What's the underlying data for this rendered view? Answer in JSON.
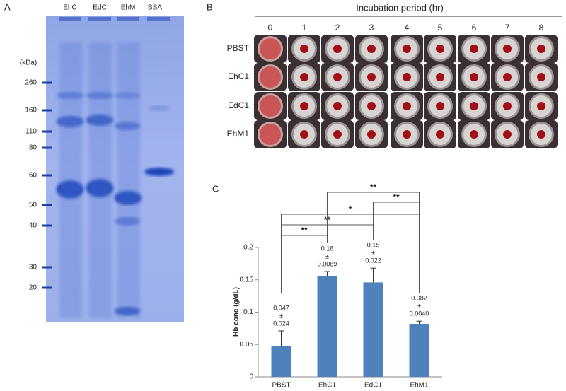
{
  "gel": {
    "panel_label": "A",
    "lanes": [
      "EhC",
      "EdC",
      "EhM",
      "BSA"
    ],
    "unit": "(kDa)",
    "markers": [
      260,
      160,
      110,
      80,
      60,
      50,
      40,
      30,
      20
    ]
  },
  "plate": {
    "panel_label": "B",
    "title": "Incubation period (hr)",
    "columns": [
      0,
      1,
      2,
      3,
      4,
      5,
      6,
      7,
      8
    ],
    "rows": [
      "PBST",
      "EhC1",
      "EdC1",
      "EhM1"
    ]
  },
  "chart_data": {
    "type": "bar",
    "panel_label": "C",
    "ylabel": "Hb conc (g/dL)",
    "categories": [
      "PBST",
      "EhC1",
      "EdC1",
      "EhM1"
    ],
    "values": [
      0.047,
      0.156,
      0.146,
      0.082
    ],
    "value_labels": [
      "0.047",
      "0.16",
      "0.15",
      "0.082"
    ],
    "errors": [
      0.024,
      0.0069,
      0.022,
      0.004
    ],
    "error_labels": [
      "0.024",
      "0.0069",
      "0.022",
      "0.0040"
    ],
    "error_symbol": "±",
    "color": "#4f81bd",
    "ylim": [
      0,
      0.2
    ],
    "yticks": [
      0,
      0.05,
      0.1,
      0.15,
      0.2
    ],
    "comparisons": [
      {
        "groups": [
          "PBST",
          "EhC1"
        ],
        "label": "**"
      },
      {
        "groups": [
          "PBST",
          "EdC1"
        ],
        "label": "**"
      },
      {
        "groups": [
          "PBST",
          "EhM1"
        ],
        "label": "*"
      },
      {
        "groups": [
          "EdC1",
          "EhM1"
        ],
        "label": "**"
      },
      {
        "groups": [
          "EhC1",
          "EhM1"
        ],
        "label": "**"
      }
    ]
  }
}
